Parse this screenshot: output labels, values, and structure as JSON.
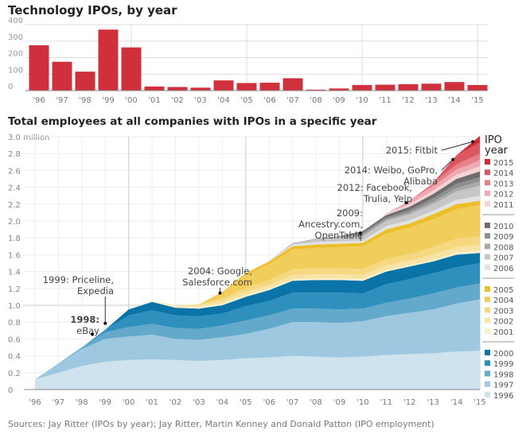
{
  "chart_data": [
    {
      "type": "bar",
      "title": "Technology IPOs, by year",
      "categories": [
        "'96",
        "'97",
        "'98",
        "'99",
        "'00",
        "'01",
        "'02",
        "'03",
        "'04",
        "'05",
        "'06",
        "'07",
        "'08",
        "'09",
        "'10",
        "'11",
        "'12",
        "'13",
        "'14",
        "'15"
      ],
      "values": [
        275,
        175,
        115,
        370,
        262,
        25,
        22,
        18,
        62,
        46,
        48,
        75,
        6,
        13,
        34,
        36,
        39,
        42,
        52,
        34
      ],
      "ylim": [
        0,
        400
      ],
      "yticks": [
        0,
        100,
        200,
        300,
        400
      ],
      "color": "#d0303c",
      "grid": true
    },
    {
      "type": "area",
      "stacked": true,
      "title": "Total employees at all companies with IPOs in a specific year",
      "yunit_label": "3.0 million",
      "ylim": [
        0,
        3.0
      ],
      "yticks": [
        "0",
        "0.2",
        "0.4",
        "0.6",
        "0.8",
        "1.0",
        "1.2",
        "1.4",
        "1.6",
        "1.8",
        "2.0",
        "2.2",
        "2.4",
        "2.6",
        "2.8"
      ],
      "categories": [
        "'96",
        "'97",
        "'98",
        "'99",
        "'00",
        "'01",
        "'02",
        "'03",
        "'04",
        "'05",
        "'06",
        "'07",
        "'08",
        "'09",
        "'10",
        "'11",
        "'12",
        "'13",
        "'14",
        "'15"
      ],
      "legend_title": "IPO year",
      "legend": "right",
      "series": [
        {
          "name": "1996",
          "color": "#cfe3ef",
          "values": [
            0.12,
            0.2,
            0.28,
            0.33,
            0.35,
            0.36,
            0.35,
            0.34,
            0.35,
            0.37,
            0.38,
            0.4,
            0.39,
            0.38,
            0.39,
            0.41,
            0.42,
            0.43,
            0.45,
            0.46
          ]
        },
        {
          "name": "1997",
          "color": "#9dc8df",
          "values": [
            0,
            0.11,
            0.2,
            0.27,
            0.28,
            0.29,
            0.25,
            0.25,
            0.27,
            0.29,
            0.34,
            0.4,
            0.41,
            0.41,
            0.42,
            0.46,
            0.49,
            0.52,
            0.57,
            0.61
          ]
        },
        {
          "name": "1998",
          "color": "#63a9cc",
          "values": [
            0,
            0,
            0.02,
            0.08,
            0.11,
            0.13,
            0.13,
            0.13,
            0.14,
            0.16,
            0.16,
            0.16,
            0.16,
            0.16,
            0.15,
            0.16,
            0.17,
            0.19,
            0.19,
            0.19
          ]
        },
        {
          "name": "1999",
          "color": "#2f8fbd",
          "values": [
            0,
            0,
            0,
            0.03,
            0.14,
            0.16,
            0.15,
            0.15,
            0.14,
            0.17,
            0.17,
            0.19,
            0.19,
            0.2,
            0.18,
            0.22,
            0.23,
            0.24,
            0.24,
            0.24
          ]
        },
        {
          "name": "2000",
          "color": "#0a74a8",
          "values": [
            0,
            0,
            0,
            0,
            0.07,
            0.1,
            0.09,
            0.09,
            0.1,
            0.11,
            0.13,
            0.14,
            0.15,
            0.15,
            0.15,
            0.15,
            0.15,
            0.14,
            0.15,
            0.12
          ]
        },
        {
          "name": "2001",
          "color": "#fbf0cc",
          "values": [
            0,
            0,
            0,
            0,
            0,
            0.01,
            0.02,
            0.02,
            0.02,
            0.02,
            0.02,
            0.02,
            0.02,
            0.02,
            0.02,
            0.02,
            0.02,
            0.02,
            0.03,
            0.03
          ]
        },
        {
          "name": "2002",
          "color": "#f8e2a4",
          "values": [
            0,
            0,
            0,
            0,
            0,
            0,
            0.01,
            0.02,
            0.03,
            0.04,
            0.04,
            0.05,
            0.05,
            0.05,
            0.05,
            0.05,
            0.05,
            0.06,
            0.06,
            0.07
          ]
        },
        {
          "name": "2003",
          "color": "#f5d880",
          "values": [
            0,
            0,
            0,
            0,
            0,
            0,
            0,
            0.01,
            0.03,
            0.05,
            0.06,
            0.07,
            0.07,
            0.07,
            0.07,
            0.08,
            0.08,
            0.09,
            0.1,
            0.1
          ]
        },
        {
          "name": "2004",
          "color": "#f1cd5b",
          "values": [
            0,
            0,
            0,
            0,
            0,
            0,
            0,
            0,
            0.08,
            0.15,
            0.19,
            0.23,
            0.24,
            0.25,
            0.27,
            0.3,
            0.31,
            0.33,
            0.35,
            0.37
          ]
        },
        {
          "name": "2005",
          "color": "#ecbf2a",
          "values": [
            0,
            0,
            0,
            0,
            0,
            0,
            0,
            0,
            0,
            0.02,
            0.03,
            0.04,
            0.04,
            0.04,
            0.04,
            0.05,
            0.05,
            0.06,
            0.06,
            0.05
          ]
        },
        {
          "name": "2006",
          "color": "#e2e2e2",
          "values": [
            0,
            0,
            0,
            0,
            0,
            0,
            0,
            0,
            0,
            0,
            0.01,
            0.02,
            0.03,
            0.03,
            0.03,
            0.04,
            0.04,
            0.04,
            0.05,
            0.06
          ]
        },
        {
          "name": "2007",
          "color": "#c6c6c6",
          "values": [
            0,
            0,
            0,
            0,
            0,
            0,
            0,
            0,
            0,
            0,
            0,
            0.02,
            0.03,
            0.04,
            0.05,
            0.06,
            0.07,
            0.08,
            0.1,
            0.12
          ]
        },
        {
          "name": "2008",
          "color": "#a9a9a9",
          "values": [
            0,
            0,
            0,
            0,
            0,
            0,
            0,
            0,
            0,
            0,
            0,
            0,
            0.01,
            0.01,
            0.02,
            0.02,
            0.02,
            0.03,
            0.04,
            0.05
          ]
        },
        {
          "name": "2009",
          "color": "#8e8e8e",
          "values": [
            0,
            0,
            0,
            0,
            0,
            0,
            0,
            0,
            0,
            0,
            0,
            0,
            0,
            0.01,
            0.02,
            0.02,
            0.03,
            0.04,
            0.05,
            0.05
          ]
        },
        {
          "name": "2010",
          "color": "#6e6e6e",
          "values": [
            0,
            0,
            0,
            0,
            0,
            0,
            0,
            0,
            0,
            0,
            0,
            0,
            0,
            0,
            0.02,
            0.03,
            0.04,
            0.05,
            0.06,
            0.07
          ]
        },
        {
          "name": "2011",
          "color": "#f4d2d6",
          "values": [
            0,
            0,
            0,
            0,
            0,
            0,
            0,
            0,
            0,
            0,
            0,
            0,
            0,
            0,
            0,
            0.02,
            0.03,
            0.04,
            0.05,
            0.06
          ]
        },
        {
          "name": "2012",
          "color": "#eeaab1",
          "values": [
            0,
            0,
            0,
            0,
            0,
            0,
            0,
            0,
            0,
            0,
            0,
            0,
            0,
            0,
            0,
            0,
            0.04,
            0.05,
            0.06,
            0.07
          ]
        },
        {
          "name": "2013",
          "color": "#e7808a",
          "values": [
            0,
            0,
            0,
            0,
            0,
            0,
            0,
            0,
            0,
            0,
            0,
            0,
            0,
            0,
            0,
            0,
            0,
            0.04,
            0.06,
            0.08
          ]
        },
        {
          "name": "2014",
          "color": "#dd5762",
          "values": [
            0,
            0,
            0,
            0,
            0,
            0,
            0,
            0,
            0,
            0,
            0,
            0,
            0,
            0,
            0,
            0,
            0,
            0,
            0.11,
            0.13
          ]
        },
        {
          "name": "2015",
          "color": "#d42a36",
          "values": [
            0,
            0,
            0,
            0,
            0,
            0,
            0,
            0,
            0,
            0,
            0,
            0,
            0,
            0,
            0,
            0,
            0,
            0,
            0,
            0.08
          ]
        }
      ],
      "annotations": [
        {
          "lines": [
            "1998:",
            "eBay"
          ],
          "year": "1998"
        },
        {
          "lines": [
            "1999: Priceline,",
            "Expedia"
          ],
          "year": "1999"
        },
        {
          "lines": [
            "2004: Google,",
            "Salesforce.com"
          ],
          "year": "2004"
        },
        {
          "lines": [
            "2009:",
            "Ancestry.com,",
            "OpenTable"
          ],
          "year": "2009"
        },
        {
          "lines": [
            "2012: Facebook,",
            "Trulia, Yelp"
          ],
          "year": "2012"
        },
        {
          "lines": [
            "2014: Weibo, GoPro,",
            "Alibaba"
          ],
          "year": "2014"
        },
        {
          "lines": [
            "2015: Fitbit"
          ],
          "year": "2015"
        }
      ]
    }
  ],
  "footer": {
    "source": "Sources: Jay Ritter (IPOs by year); Jay Ritter, Martin Kenney and Donald Patton (IPO employment)"
  }
}
